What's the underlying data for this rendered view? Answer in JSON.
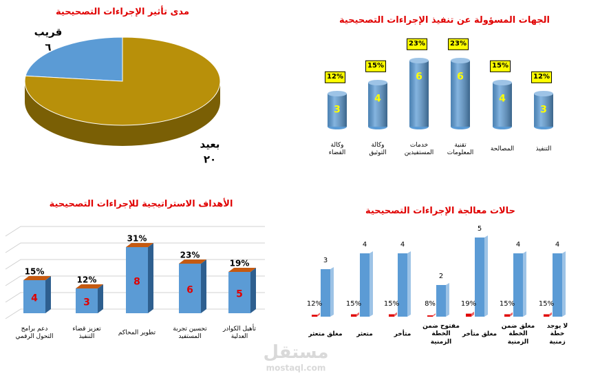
{
  "chart_data": [
    {
      "type": "pie",
      "title": "مدى تأثير الإجراءات التصحيحية",
      "categories": [
        "قريب",
        "بعيد"
      ],
      "values": [
        6,
        20
      ],
      "value_labels": [
        "٦",
        "٢٠"
      ],
      "colors": [
        "#5b9bd5",
        "#b8900a"
      ]
    },
    {
      "type": "cylinder",
      "title": "الجهات المسؤولة عن تنفيذ الإجراءات التصحيحية",
      "categories": [
        "وكالة\nالقضاء",
        "وكالة\nالتوثيق",
        "خدمات\nالمستفيدين",
        "تقنية\nالمعلومات",
        "المصالحة",
        "التنفيذ"
      ],
      "values": [
        3,
        4,
        6,
        6,
        4,
        3
      ],
      "percent_labels": [
        "12%",
        "15%",
        "23%",
        "23%",
        "15%",
        "12%"
      ],
      "color": "#5b9bd5",
      "ylim": [
        0,
        7
      ]
    },
    {
      "type": "box",
      "title": "الأهداف الاستراتيجية للإجراءات التصحيحية",
      "categories": [
        "دعم برامج\nالتحول الرقمي",
        "تعزيز قضاء\nالتنفيذ",
        "تطوير المحاكم",
        "تحسين تجربة\nالمستفيد",
        "تأهيل الكوادر\nالعدلية"
      ],
      "values": [
        4,
        3,
        8,
        6,
        5
      ],
      "percent_labels": [
        "15%",
        "12%",
        "31%",
        "23%",
        "19%"
      ],
      "color": "#5b9bd5",
      "ylim": [
        0,
        10
      ],
      "yticks": [
        0,
        2,
        4,
        6,
        8,
        10
      ],
      "grid": true
    },
    {
      "type": "bar",
      "title": "حالات معالجة الإجراءات التصحيحية",
      "categories": [
        "مغلق متعثر",
        "متعثر",
        "متأخر",
        "مفتوح ضمن\nالخطة\nالزمنية",
        "مغلق متأخر",
        "مغلق ضمن\nالخطة\nالزمنية",
        "لا يوجد خطة\nزمنية"
      ],
      "series": [
        {
          "color": "#e00000",
          "values": [
            0.12,
            0.15,
            0.15,
            0.08,
            0.19,
            0.15,
            0.15
          ],
          "value_labels": [
            "12%",
            "15%",
            "15%",
            "8%",
            "19%",
            "15%",
            "15%"
          ]
        },
        {
          "color": "#5b9bd5",
          "values": [
            3,
            4,
            4,
            2,
            5,
            4,
            4
          ]
        }
      ],
      "ylim": [
        0,
        5
      ]
    }
  ],
  "watermark": {
    "brand": "مستقل",
    "url": "mostaql.com"
  }
}
